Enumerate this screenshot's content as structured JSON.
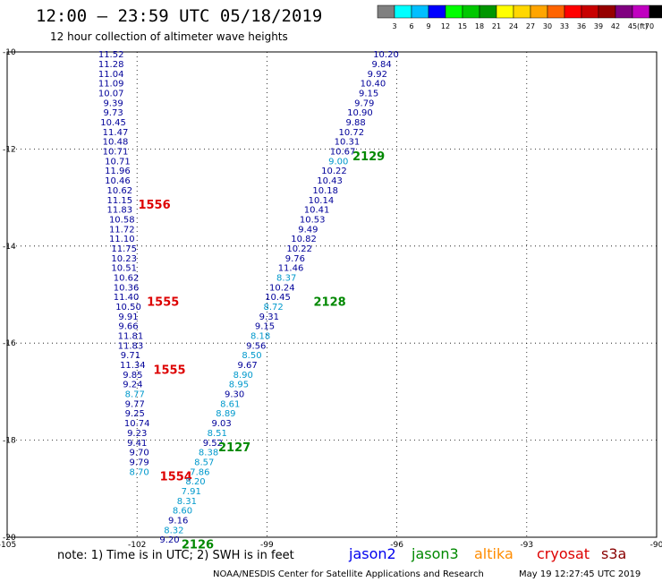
{
  "title": "12:00 – 23:59 UTC 05/18/2019",
  "subtitle": "12 hour collection of altimeter wave heights",
  "note": "note: 1) Time is in UTC; 2) SWH is in feet",
  "footer_left": "NOAA/NESDIS Center for Satellite Applications and Research",
  "footer_right": "May 19 12:27:45 UTC 2019",
  "colorbar": {
    "unit": "(ft)",
    "labels": [
      "3",
      "6",
      "9",
      "12",
      "15",
      "18",
      "21",
      "24",
      "27",
      "30",
      "33",
      "36",
      "39",
      "42",
      "45",
      "70"
    ],
    "colors": [
      "#808080",
      "#00ffff",
      "#00bfff",
      "#0000ff",
      "#00ff00",
      "#00c800",
      "#009600",
      "#ffff00",
      "#ffd700",
      "#ffa500",
      "#ff6400",
      "#ff0000",
      "#c80000",
      "#960000",
      "#800080",
      "#c000c0",
      "#000000"
    ]
  },
  "missions": [
    {
      "name": "jason2",
      "color": "#0000ee"
    },
    {
      "name": "jason3",
      "color": "#008800"
    },
    {
      "name": "altika",
      "color": "#ff8c00"
    },
    {
      "name": "cryosat",
      "color": "#dd0000"
    },
    {
      "name": "s3a",
      "color": "#880000"
    }
  ],
  "chart_data": {
    "type": "scatter",
    "xlim": [
      -105,
      -90
    ],
    "ylim": [
      -20,
      -10
    ],
    "xticks": [
      "-105",
      "-102",
      "-99",
      "-96",
      "-93",
      "-90"
    ],
    "yticks": [
      "-10",
      "-12",
      "-14",
      "-16",
      "-18",
      "-20"
    ],
    "grid": true,
    "legend_placement": "bottom",
    "tracks": [
      {
        "mission": "cryosat",
        "label_color": "#dd0000",
        "value_color": "#000099",
        "value_color_light": "#0099cc",
        "points": [
          {
            "x": -102.6,
            "y": -10.04,
            "v": "11.52"
          },
          {
            "x": -102.6,
            "y": -10.24,
            "v": "11.28"
          },
          {
            "x": -102.6,
            "y": -10.44,
            "v": "11.04"
          },
          {
            "x": -102.6,
            "y": -10.64,
            "v": "11.09"
          },
          {
            "x": -102.6,
            "y": -10.84,
            "v": "10.07"
          },
          {
            "x": -102.55,
            "y": -11.04,
            "v": "9.39"
          },
          {
            "x": -102.55,
            "y": -11.24,
            "v": "9.73"
          },
          {
            "x": -102.55,
            "y": -11.44,
            "v": "10.45"
          },
          {
            "x": -102.5,
            "y": -11.64,
            "v": "11.47"
          },
          {
            "x": -102.5,
            "y": -11.84,
            "v": "10.48"
          },
          {
            "x": -102.5,
            "y": -12.04,
            "v": "10.71"
          },
          {
            "x": -102.45,
            "y": -12.24,
            "v": "10.71"
          },
          {
            "x": -102.45,
            "y": -12.44,
            "v": "11.96"
          },
          {
            "x": -102.45,
            "y": -12.64,
            "v": "10.46"
          },
          {
            "x": -102.4,
            "y": -12.84,
            "v": "10.62"
          },
          {
            "x": -102.4,
            "y": -13.04,
            "v": "11.15"
          },
          {
            "x": -102.4,
            "y": -13.24,
            "v": "11.83"
          },
          {
            "x": -102.35,
            "y": -13.44,
            "v": "10.58"
          },
          {
            "x": -102.35,
            "y": -13.64,
            "v": "11.72"
          },
          {
            "x": -102.35,
            "y": -13.84,
            "v": "11.10"
          },
          {
            "x": -102.3,
            "y": -14.04,
            "v": "11.75"
          },
          {
            "x": -102.3,
            "y": -14.24,
            "v": "10.23"
          },
          {
            "x": -102.3,
            "y": -14.44,
            "v": "10.51"
          },
          {
            "x": -102.25,
            "y": -14.64,
            "v": "10.62"
          },
          {
            "x": -102.25,
            "y": -14.84,
            "v": "10.36"
          },
          {
            "x": -102.25,
            "y": -15.04,
            "v": "11.40"
          },
          {
            "x": -102.2,
            "y": -15.24,
            "v": "10.50"
          },
          {
            "x": -102.2,
            "y": -15.44,
            "v": "9.91"
          },
          {
            "x": -102.2,
            "y": -15.64,
            "v": "9.66"
          },
          {
            "x": -102.15,
            "y": -15.84,
            "v": "11.81"
          },
          {
            "x": -102.15,
            "y": -16.04,
            "v": "11.83"
          },
          {
            "x": -102.15,
            "y": -16.24,
            "v": "9.71"
          },
          {
            "x": -102.1,
            "y": -16.44,
            "v": "11.34"
          },
          {
            "x": -102.1,
            "y": -16.64,
            "v": "9.85"
          },
          {
            "x": -102.1,
            "y": -16.84,
            "v": "9.24"
          },
          {
            "x": -102.05,
            "y": -17.04,
            "v": "8.77",
            "light": true
          },
          {
            "x": -102.05,
            "y": -17.24,
            "v": "9.77"
          },
          {
            "x": -102.05,
            "y": -17.44,
            "v": "9.25"
          },
          {
            "x": -102.0,
            "y": -17.64,
            "v": "10.74"
          },
          {
            "x": -102.0,
            "y": -17.84,
            "v": "9.23"
          },
          {
            "x": -102.0,
            "y": -18.04,
            "v": "9.41"
          },
          {
            "x": -101.95,
            "y": -18.24,
            "v": "9.70"
          },
          {
            "x": -101.95,
            "y": -18.44,
            "v": "9.79"
          },
          {
            "x": -101.95,
            "y": -18.64,
            "v": "8.70",
            "light": true
          }
        ],
        "pass_labels": [
          {
            "x": -101.6,
            "y": -13.14,
            "text": "1556"
          },
          {
            "x": -101.4,
            "y": -15.14,
            "text": "1555"
          },
          {
            "x": -101.25,
            "y": -16.54,
            "text": "1555"
          },
          {
            "x": -101.1,
            "y": -18.74,
            "text": "1554"
          }
        ]
      },
      {
        "mission": "jason3",
        "label_color": "#008800",
        "value_color": "#000099",
        "value_color_light": "#0099cc",
        "points": [
          {
            "x": -96.25,
            "y": -10.04,
            "v": "10.20"
          },
          {
            "x": -96.35,
            "y": -10.24,
            "v": "9.84"
          },
          {
            "x": -96.45,
            "y": -10.44,
            "v": "9.92"
          },
          {
            "x": -96.55,
            "y": -10.64,
            "v": "10.40"
          },
          {
            "x": -96.65,
            "y": -10.84,
            "v": "9.15"
          },
          {
            "x": -96.75,
            "y": -11.04,
            "v": "9.79"
          },
          {
            "x": -96.85,
            "y": -11.24,
            "v": "10.90"
          },
          {
            "x": -96.95,
            "y": -11.44,
            "v": "9.88"
          },
          {
            "x": -97.05,
            "y": -11.64,
            "v": "10.72"
          },
          {
            "x": -97.15,
            "y": -11.84,
            "v": "10.31"
          },
          {
            "x": -97.25,
            "y": -12.04,
            "v": "10.67"
          },
          {
            "x": -97.35,
            "y": -12.24,
            "v": "9.00",
            "light": true
          },
          {
            "x": -97.45,
            "y": -12.44,
            "v": "10.22"
          },
          {
            "x": -97.55,
            "y": -12.64,
            "v": "10.43"
          },
          {
            "x": -97.65,
            "y": -12.84,
            "v": "10.18"
          },
          {
            "x": -97.75,
            "y": -13.04,
            "v": "10.14"
          },
          {
            "x": -97.85,
            "y": -13.24,
            "v": "10.41"
          },
          {
            "x": -97.95,
            "y": -13.44,
            "v": "10.53"
          },
          {
            "x": -98.05,
            "y": -13.64,
            "v": "9.49"
          },
          {
            "x": -98.15,
            "y": -13.84,
            "v": "10.82"
          },
          {
            "x": -98.25,
            "y": -14.04,
            "v": "10.22"
          },
          {
            "x": -98.35,
            "y": -14.24,
            "v": "9.76"
          },
          {
            "x": -98.45,
            "y": -14.44,
            "v": "11.46"
          },
          {
            "x": -98.55,
            "y": -14.64,
            "v": "8.37",
            "light": true
          },
          {
            "x": -98.65,
            "y": -14.84,
            "v": "10.24"
          },
          {
            "x": -98.75,
            "y": -15.04,
            "v": "10.45"
          },
          {
            "x": -98.85,
            "y": -15.24,
            "v": "8.72",
            "light": true
          },
          {
            "x": -98.95,
            "y": -15.44,
            "v": "9.31"
          },
          {
            "x": -99.05,
            "y": -15.64,
            "v": "9.15"
          },
          {
            "x": -99.15,
            "y": -15.84,
            "v": "8.18",
            "light": true
          },
          {
            "x": -99.25,
            "y": -16.04,
            "v": "9.56"
          },
          {
            "x": -99.35,
            "y": -16.24,
            "v": "8.50",
            "light": true
          },
          {
            "x": -99.45,
            "y": -16.44,
            "v": "9.67"
          },
          {
            "x": -99.55,
            "y": -16.64,
            "v": "8.90",
            "light": true
          },
          {
            "x": -99.65,
            "y": -16.84,
            "v": "8.95",
            "light": true
          },
          {
            "x": -99.75,
            "y": -17.04,
            "v": "9.30"
          },
          {
            "x": -99.85,
            "y": -17.24,
            "v": "8.61",
            "light": true
          },
          {
            "x": -99.95,
            "y": -17.44,
            "v": "8.89",
            "light": true
          },
          {
            "x": -100.05,
            "y": -17.64,
            "v": "9.03"
          },
          {
            "x": -100.15,
            "y": -17.84,
            "v": "8.51",
            "light": true
          },
          {
            "x": -100.25,
            "y": -18.04,
            "v": "9.52"
          },
          {
            "x": -100.35,
            "y": -18.24,
            "v": "8.38",
            "light": true
          },
          {
            "x": -100.45,
            "y": -18.44,
            "v": "8.57",
            "light": true
          },
          {
            "x": -100.55,
            "y": -18.64,
            "v": "7.86",
            "light": true
          },
          {
            "x": -100.65,
            "y": -18.84,
            "v": "8.20",
            "light": true
          },
          {
            "x": -100.75,
            "y": -19.04,
            "v": "7.91",
            "light": true
          },
          {
            "x": -100.85,
            "y": -19.24,
            "v": "8.31",
            "light": true
          },
          {
            "x": -100.95,
            "y": -19.44,
            "v": "8.60",
            "light": true
          },
          {
            "x": -101.05,
            "y": -19.64,
            "v": "9.16"
          },
          {
            "x": -101.15,
            "y": -19.84,
            "v": "8.32",
            "light": true
          },
          {
            "x": -101.25,
            "y": -20.04,
            "v": "9.20"
          }
        ],
        "pass_labels": [
          {
            "x": -96.65,
            "y": -12.14,
            "text": "2129"
          },
          {
            "x": -97.55,
            "y": -15.14,
            "text": "2128"
          },
          {
            "x": -99.75,
            "y": -18.14,
            "text": "2127"
          },
          {
            "x": -100.6,
            "y": -20.14,
            "text": "2126"
          }
        ]
      }
    ]
  }
}
